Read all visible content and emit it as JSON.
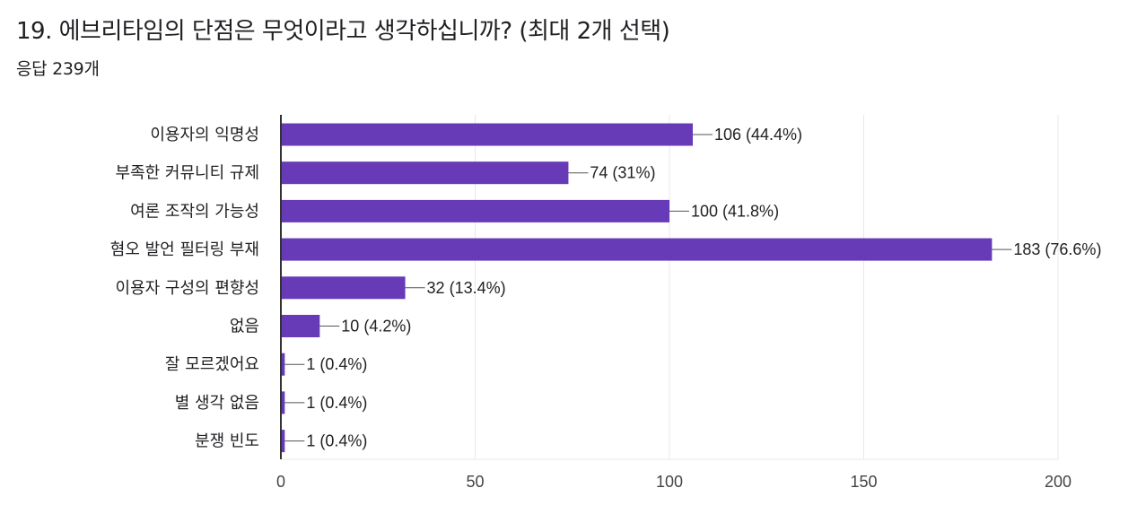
{
  "question": {
    "title": "19. 에브리타임의 단점은 무엇이라고 생각하십니까? (최대 2개 선택)",
    "response_count": "응답 239개"
  },
  "colors": {
    "bar": "#673ab7",
    "grid": "#e8e8e8",
    "axis": "#333333",
    "leader": "#555555"
  },
  "chart_data": {
    "type": "bar",
    "orientation": "horizontal",
    "categories": [
      "이용자의 익명성",
      "부족한 커뮤니티 규제",
      "여론 조작의 가능성",
      "혐오 발언 필터링 부재",
      "이용자 구성의 편향성",
      "없음",
      "잘 모르겠어요",
      "별 생각 없음",
      "분쟁 빈도"
    ],
    "values": [
      106,
      74,
      100,
      183,
      32,
      10,
      1,
      1,
      1
    ],
    "value_labels": [
      "106 (44.4%)",
      "74 (31%)",
      "100 (41.8%)",
      "183 (76.6%)",
      "32 (13.4%)",
      "10 (4.2%)",
      "1 (0.4%)",
      "1 (0.4%)",
      "1 (0.4%)"
    ],
    "xlim": [
      0,
      200
    ],
    "xticks": [
      0,
      50,
      100,
      150,
      200
    ],
    "grid": true,
    "legend": "none"
  }
}
